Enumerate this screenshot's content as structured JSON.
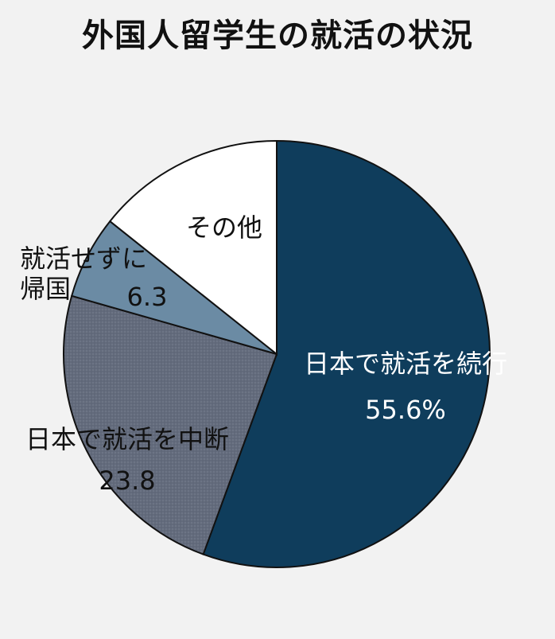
{
  "chart_data": {
    "type": "pie",
    "title": "外国人留学生の就活の状況",
    "slices": [
      {
        "label_lines": [
          "日本で就活を続行"
        ],
        "value_label": "55.6%",
        "value": 55.6,
        "color": "#0f3d5c",
        "label_color": "#ffffff",
        "pattern": false
      },
      {
        "label_lines": [
          "日本で就活を中断"
        ],
        "value_label": "23.8",
        "value": 23.8,
        "color": "#636b7c",
        "label_color": "#111111",
        "pattern": true
      },
      {
        "label_lines": [
          "就活せずに",
          "帰国"
        ],
        "value_label": "6.3",
        "value": 6.3,
        "color": "#6b8ba4",
        "label_color": "#111111",
        "pattern": false
      },
      {
        "label_lines": [
          "その他"
        ],
        "value_label": "",
        "value": 14.3,
        "color": "#ffffff",
        "label_color": "#111111",
        "pattern": false
      }
    ],
    "start": "12 o'clock",
    "direction": "clockwise",
    "legend": "none"
  }
}
